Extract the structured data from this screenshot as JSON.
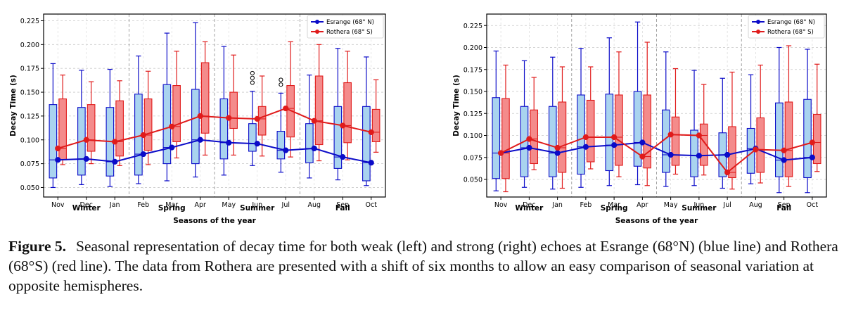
{
  "figure": {
    "caption_label": "Figure 5.",
    "caption_text": "Seasonal representation of decay time for both weak (left) and strong (right) echoes at Esrange (68°N) (blue line) and Rothera (68°S) (red line). The data from Rothera are presented with a shift of six months to allow an easy comparison of seasonal variation at opposite hemispheres."
  },
  "colors": {
    "esrange_line": "#0b0bc8",
    "esrange_box": "#a9d3ef",
    "rothera_line": "#e01b1b",
    "rothera_box": "#f48b8b"
  },
  "chart_data": [
    {
      "type": "box",
      "panel": "left",
      "xlabel": "Seasons of the year",
      "ylabel": "Decay Time (s)",
      "ylim": [
        0.04,
        0.232
      ],
      "yticks": [
        "0.050",
        "0.075",
        "0.100",
        "0.125",
        "0.150",
        "0.175",
        "0.200",
        "0.225"
      ],
      "grid": true,
      "legend_position": "top-right",
      "categories": [
        "Nov",
        "Dec",
        "Jan",
        "Feb",
        "Mar",
        "Apr",
        "May",
        "Jun",
        "Jul",
        "Aug",
        "Sep",
        "Oct"
      ],
      "seasons": [
        "Winter",
        "Spring",
        "Summer",
        "Fall"
      ],
      "series": [
        {
          "name": "Esrange (68° N)",
          "medians": [
            0.079,
            0.08,
            0.077,
            0.085,
            0.092,
            0.1,
            0.097,
            0.096,
            0.089,
            0.091,
            0.082,
            0.076
          ],
          "q1": [
            0.06,
            0.063,
            0.062,
            0.063,
            0.075,
            0.075,
            0.08,
            0.088,
            0.08,
            0.076,
            0.07,
            0.057
          ],
          "q3": [
            0.137,
            0.134,
            0.134,
            0.148,
            0.158,
            0.153,
            0.143,
            0.117,
            0.109,
            0.117,
            0.135,
            0.135
          ],
          "whisker_low": [
            0.05,
            0.053,
            0.051,
            0.054,
            0.057,
            0.061,
            0.063,
            0.073,
            0.066,
            0.06,
            0.058,
            0.052
          ],
          "whisker_high": [
            0.18,
            0.173,
            0.174,
            0.188,
            0.212,
            0.223,
            0.198,
            0.151,
            0.149,
            0.168,
            0.196,
            0.187
          ],
          "outliers": [
            [],
            [],
            [],
            [],
            [],
            [],
            [],
            [
              0.16,
              0.165,
              0.17
            ],
            [
              0.158,
              0.163
            ],
            [],
            [],
            []
          ]
        },
        {
          "name": "Rothera (68° S)",
          "medians": [
            0.091,
            0.1,
            0.098,
            0.105,
            0.114,
            0.125,
            0.123,
            0.122,
            0.133,
            0.12,
            0.115,
            0.108
          ],
          "q1": [
            0.079,
            0.088,
            0.083,
            0.089,
            0.098,
            0.107,
            0.112,
            0.105,
            0.103,
            0.095,
            0.097,
            0.098
          ],
          "q3": [
            0.143,
            0.137,
            0.141,
            0.143,
            0.157,
            0.181,
            0.15,
            0.135,
            0.157,
            0.167,
            0.16,
            0.132
          ],
          "whisker_low": [
            0.074,
            0.075,
            0.073,
            0.074,
            0.081,
            0.084,
            0.084,
            0.083,
            0.082,
            0.078,
            0.079,
            0.087
          ],
          "whisker_high": [
            0.168,
            0.161,
            0.162,
            0.172,
            0.193,
            0.203,
            0.189,
            0.167,
            0.203,
            0.2,
            0.193,
            0.163
          ],
          "outliers": [
            [],
            [],
            [],
            [],
            [],
            [],
            [],
            [],
            [],
            [],
            [],
            []
          ]
        }
      ]
    },
    {
      "type": "box",
      "panel": "right",
      "xlabel": "Seasons of the year",
      "ylabel": "Decay Time (s)",
      "ylim": [
        0.03,
        0.238
      ],
      "yticks": [
        "0.050",
        "0.075",
        "0.100",
        "0.125",
        "0.150",
        "0.175",
        "0.200",
        "0.225"
      ],
      "grid": true,
      "legend_position": "top-right",
      "categories": [
        "Nov",
        "Dec",
        "Jan",
        "Feb",
        "Mar",
        "Apr",
        "May",
        "Jun",
        "Jul",
        "Aug",
        "Sep",
        "Oct"
      ],
      "seasons": [
        "Winter",
        "Spring",
        "Summer",
        "Fall"
      ],
      "series": [
        {
          "name": "Esrange (68° N)",
          "medians": [
            0.08,
            0.086,
            0.08,
            0.087,
            0.089,
            0.092,
            0.078,
            0.077,
            0.078,
            0.085,
            0.072,
            0.075
          ],
          "q1": [
            0.051,
            0.053,
            0.053,
            0.056,
            0.06,
            0.065,
            0.058,
            0.053,
            0.053,
            0.057,
            0.053,
            0.052
          ],
          "q3": [
            0.143,
            0.133,
            0.133,
            0.146,
            0.147,
            0.15,
            0.129,
            0.106,
            0.103,
            0.108,
            0.137,
            0.141
          ],
          "whisker_low": [
            0.037,
            0.041,
            0.039,
            0.041,
            0.043,
            0.044,
            0.042,
            0.043,
            0.04,
            0.045,
            0.035,
            0.035
          ],
          "whisker_high": [
            0.196,
            0.185,
            0.189,
            0.199,
            0.211,
            0.229,
            0.195,
            0.174,
            0.165,
            0.169,
            0.2,
            0.198
          ],
          "outliers": [
            [],
            [],
            [],
            [],
            [],
            [],
            [],
            [],
            [],
            [],
            [],
            []
          ]
        },
        {
          "name": "Rothera (68° S)",
          "medians": [
            0.08,
            0.096,
            0.086,
            0.098,
            0.098,
            0.076,
            0.101,
            0.1,
            0.058,
            0.084,
            0.083,
            0.092
          ],
          "q1": [
            0.051,
            0.068,
            0.058,
            0.07,
            0.066,
            0.063,
            0.066,
            0.066,
            0.052,
            0.058,
            0.053,
            0.068
          ],
          "q3": [
            0.142,
            0.129,
            0.138,
            0.14,
            0.146,
            0.146,
            0.121,
            0.113,
            0.11,
            0.12,
            0.138,
            0.124
          ],
          "whisker_low": [
            0.036,
            0.061,
            0.04,
            0.062,
            0.053,
            0.043,
            0.056,
            0.055,
            0.039,
            0.046,
            0.042,
            0.059
          ],
          "whisker_high": [
            0.18,
            0.166,
            0.178,
            0.178,
            0.195,
            0.206,
            0.176,
            0.158,
            0.172,
            0.18,
            0.202,
            0.181
          ],
          "outliers": [
            [],
            [],
            [],
            [],
            [],
            [],
            [],
            [],
            [],
            [],
            [],
            []
          ]
        }
      ]
    }
  ]
}
